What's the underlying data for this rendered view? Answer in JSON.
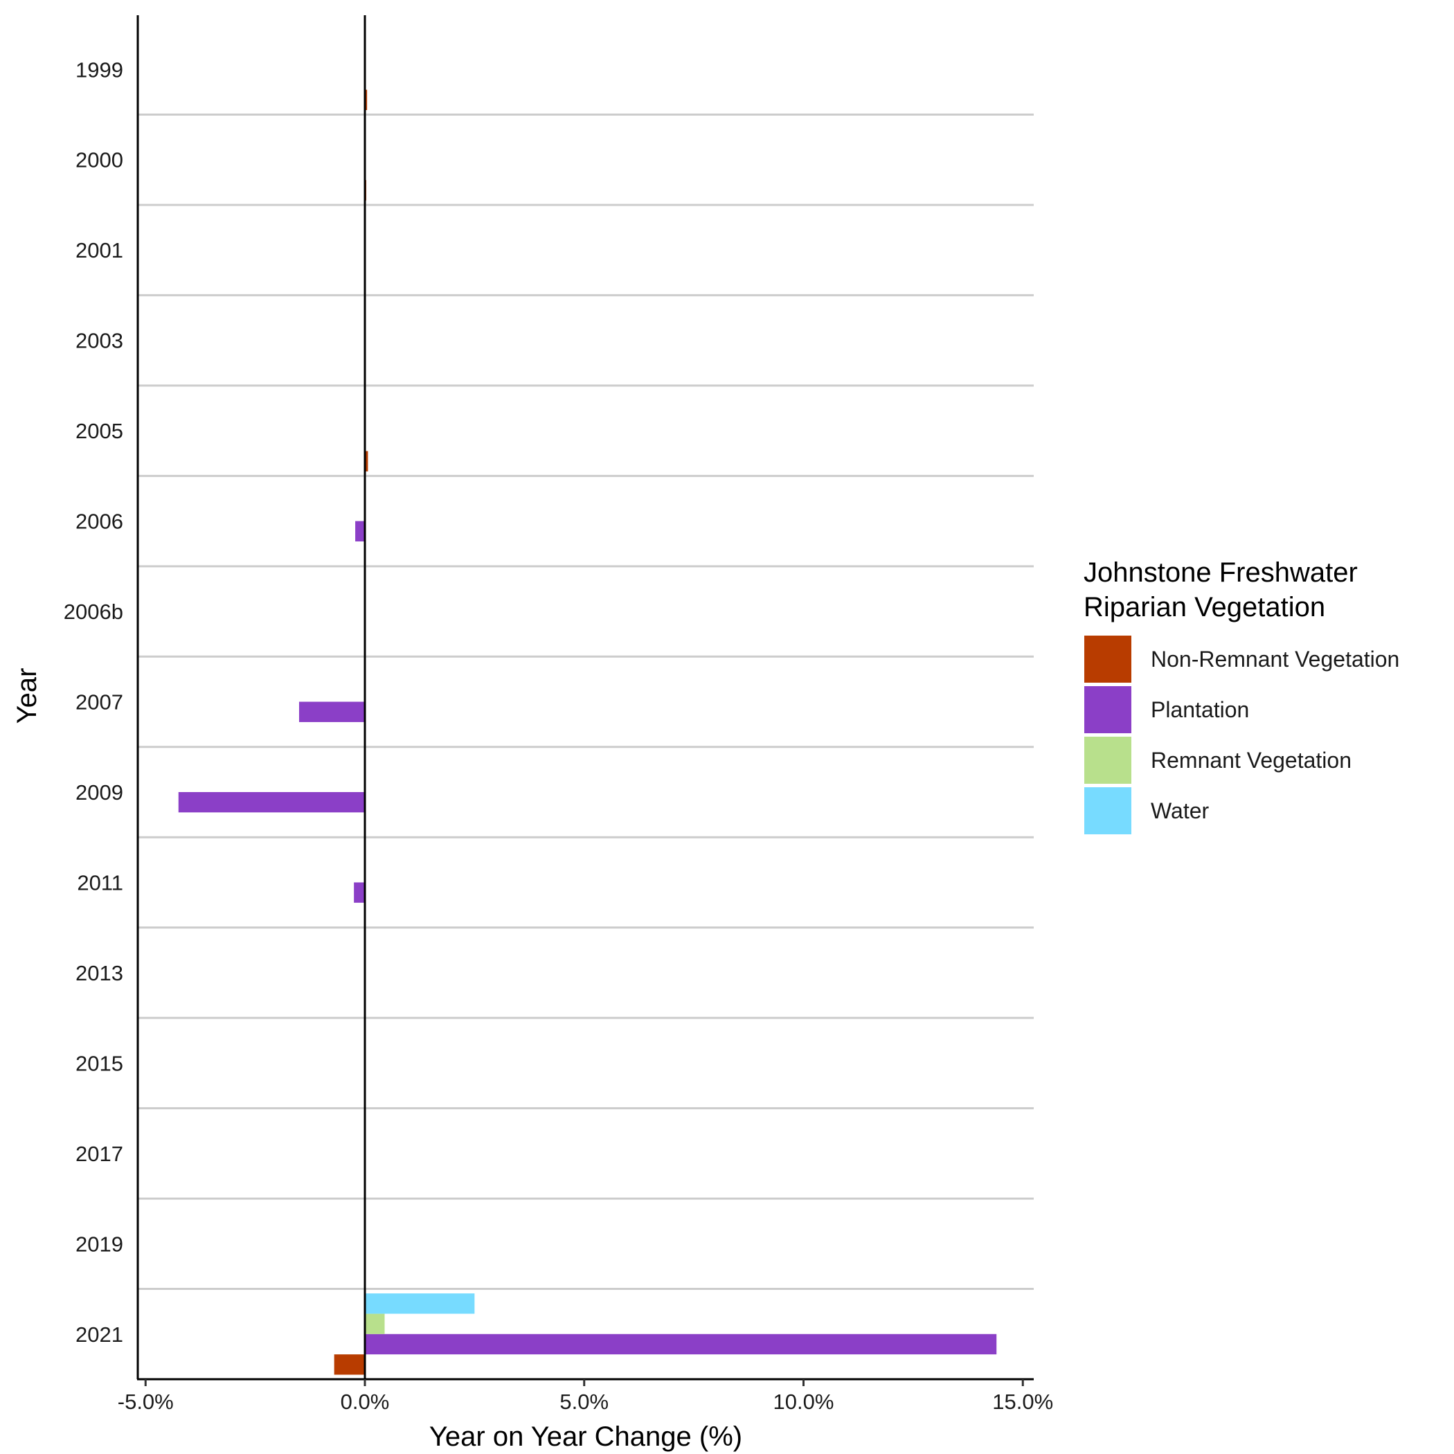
{
  "chart_data": {
    "type": "bar",
    "orientation": "horizontal",
    "title": "",
    "xlabel": "Year on Year Change (%)",
    "ylabel": "Year",
    "xlim": [
      -5.2,
      15.3
    ],
    "x_ticks": [
      -5,
      0,
      5,
      10,
      15
    ],
    "x_tick_labels": [
      "-5.0%",
      "0.0%",
      "5.0%",
      "10.0%",
      "15.0%"
    ],
    "categories": [
      "1999",
      "2000",
      "2001",
      "2003",
      "2005",
      "2006",
      "2006b",
      "2007",
      "2009",
      "2011",
      "2013",
      "2015",
      "2017",
      "2019",
      "2021"
    ],
    "series": [
      {
        "name": "Non-Remnant Vegetation",
        "color": "#B83C00",
        "values": [
          0.05,
          0.03,
          0,
          0,
          0.07,
          0,
          0,
          0,
          0,
          0,
          0,
          0,
          0,
          0,
          -0.7
        ]
      },
      {
        "name": "Plantation",
        "color": "#8B3FC7",
        "values": [
          0,
          0,
          0,
          0,
          0,
          -0.22,
          0,
          -1.5,
          -4.25,
          -0.25,
          0,
          0,
          0,
          0,
          14.4
        ]
      },
      {
        "name": "Remnant Vegetation",
        "color": "#B8E08C",
        "values": [
          0,
          0,
          0,
          0,
          0,
          0,
          0,
          0,
          0,
          0,
          0,
          0,
          0,
          0,
          0.45
        ]
      },
      {
        "name": "Water",
        "color": "#77DBFF",
        "values": [
          0,
          0,
          0,
          0,
          0,
          0,
          0,
          0,
          0,
          0,
          0,
          0,
          0,
          0,
          2.5
        ]
      }
    ],
    "grid": "horizontal separators between categories",
    "zero_line": true,
    "legend": {
      "title_lines": [
        "Johnstone Freshwater",
        "Riparian Vegetation"
      ],
      "position": "right"
    }
  }
}
